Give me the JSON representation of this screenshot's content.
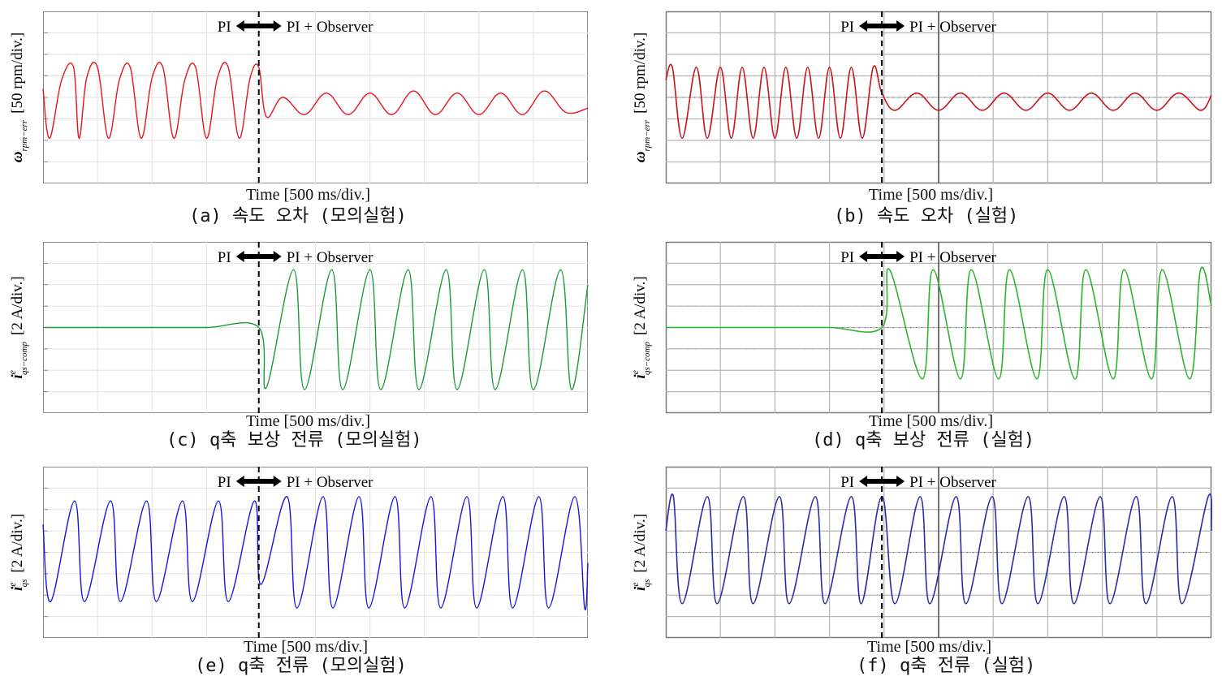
{
  "figure": {
    "panels": [
      {
        "id": "a",
        "caption": "(a) 속도 오차 (모의실험)",
        "kind": "simulation",
        "trace_color": "#e8141e",
        "ylabel_main": "[50 rpm/div.]",
        "ylabel_sym": "ω",
        "ylabel_sub": "rpm−err",
        "ylabel_sup": "",
        "xlabel": "Time [500 ms/div.]",
        "left_label": "PI",
        "right_label": "PI + Observer"
      },
      {
        "id": "b",
        "caption": "(b) 속도 오차 (실험)",
        "kind": "experiment",
        "trace_color": "#c8151b",
        "ylabel_main": "[50 rpm/div.]",
        "ylabel_sym": "ω",
        "ylabel_sub": "rpm−err",
        "ylabel_sup": "",
        "xlabel": "Time [500 ms/div.]",
        "left_label": "PI",
        "right_label": "PI + Observer"
      },
      {
        "id": "c",
        "caption": "(c) q축 보상 전류 (모의실험)",
        "kind": "simulation",
        "trace_color": "#1a9a3a",
        "ylabel_main": "[2 A/div.]",
        "ylabel_sym": "i",
        "ylabel_sub": "qs−comp",
        "ylabel_sup": "e",
        "xlabel": "Time [500 ms/div.]",
        "left_label": "PI",
        "right_label": "PI + Observer"
      },
      {
        "id": "d",
        "caption": "(d) q축 보상 전류 (실험)",
        "kind": "experiment",
        "trace_color": "#2cb52c",
        "ylabel_main": "[2 A/div.]",
        "ylabel_sym": "i",
        "ylabel_sub": "qs−comp",
        "ylabel_sup": "e",
        "xlabel": "Time [500 ms/div.]",
        "left_label": "PI",
        "right_label": "PI + Observer"
      },
      {
        "id": "e",
        "caption": "(e) q축 전류 (모의실험)",
        "kind": "simulation",
        "trace_color": "#1414e6",
        "ylabel_main": "[2 A/div.]",
        "ylabel_sym": "i",
        "ylabel_sub": "qs",
        "ylabel_sup": "e",
        "xlabel": "Time [500 ms/div.]",
        "left_label": "PI",
        "right_label": "PI + Observer"
      },
      {
        "id": "f",
        "caption": "(f) q축 전류 (실험)",
        "kind": "experiment",
        "trace_color": "#2b2ba6",
        "ylabel_main": "[2 A/div.]",
        "ylabel_sym": "i",
        "ylabel_sub": "qs",
        "ylabel_sup": "e",
        "xlabel": "Time [500 ms/div.]",
        "left_label": "PI",
        "right_label": "PI + Observer"
      }
    ]
  },
  "chart_data": [
    {
      "type": "line",
      "panel": "a",
      "title": "",
      "xlabel": "Time [500 ms/div.]",
      "ylabel": "ω_rpm−err [50 rpm/div.]",
      "xlim": [
        0,
        5000
      ],
      "x_unit": "ms",
      "y_unit": "div",
      "ylim": [
        -4,
        4
      ],
      "switch_time": 1980,
      "series": [
        {
          "x": [
            0,
            60,
            170,
            280,
            330,
            400,
            500,
            600,
            700,
            800,
            900,
            1000,
            1100,
            1200,
            1300,
            1400,
            1500,
            1600,
            1700,
            1800,
            1900,
            1980,
            2050,
            2200,
            2400,
            2600,
            2800,
            3000,
            3200,
            3400,
            3600,
            3800,
            4000,
            4200,
            4400,
            4600,
            4800,
            5000
          ],
          "values": [
            0.4,
            -1.9,
            0.8,
            1.4,
            -1.9,
            0.9,
            1.4,
            -1.9,
            0.8,
            1.4,
            -1.9,
            0.9,
            1.4,
            -1.9,
            0.8,
            1.4,
            -1.9,
            0.9,
            1.4,
            -1.9,
            0.9,
            1.4,
            -0.9,
            0.0,
            -0.8,
            0.2,
            -0.8,
            0.2,
            -0.8,
            0.3,
            -0.8,
            0.2,
            -0.8,
            0.2,
            -0.8,
            0.3,
            -0.7,
            -0.5
          ]
        }
      ],
      "grid": true
    },
    {
      "type": "line",
      "panel": "b",
      "title": "",
      "xlabel": "Time [500 ms/div.]",
      "ylabel": "ω_rpm−err [50 rpm/div.]",
      "xlim": [
        0,
        5000
      ],
      "x_unit": "ms",
      "y_unit": "div",
      "ylim": [
        -4,
        4
      ],
      "switch_time": 1980,
      "series": [
        {
          "x": [
            0,
            60,
            150,
            280,
            380,
            500,
            600,
            700,
            800,
            900,
            1000,
            1100,
            1200,
            1300,
            1400,
            1500,
            1600,
            1700,
            1800,
            1900,
            1980,
            2100,
            2300,
            2500,
            2700,
            2900,
            3100,
            3300,
            3500,
            3700,
            3900,
            4100,
            4300,
            4500,
            4700,
            4900,
            5000
          ],
          "values": [
            0.8,
            1.4,
            -1.9,
            1.4,
            -1.9,
            1.4,
            -1.9,
            1.4,
            -1.9,
            1.4,
            -1.9,
            1.4,
            -1.9,
            1.4,
            -1.9,
            1.4,
            -1.9,
            1.4,
            -1.9,
            1.4,
            0.2,
            -0.6,
            0.2,
            -0.6,
            0.2,
            -0.6,
            0.2,
            -0.6,
            0.2,
            -0.6,
            0.2,
            -0.6,
            0.2,
            -0.6,
            0.2,
            -0.6,
            0.1
          ]
        }
      ],
      "grid": true
    },
    {
      "type": "line",
      "panel": "c",
      "title": "",
      "xlabel": "Time [500 ms/div.]",
      "ylabel": "i^e_qs−comp [2 A/div.]",
      "xlim": [
        0,
        5000
      ],
      "x_unit": "ms",
      "y_unit": "div",
      "ylim": [
        -4,
        4
      ],
      "switch_time": 1980,
      "series": [
        {
          "x": [
            0,
            500,
            1000,
            1500,
            1980,
            2050,
            2300,
            2400,
            2650,
            2750,
            3000,
            3100,
            3350,
            3450,
            3700,
            3800,
            4050,
            4150,
            4400,
            4500,
            4750,
            4850,
            5000
          ],
          "values": [
            0.0,
            0.0,
            0.0,
            0.0,
            0.0,
            -2.8,
            2.7,
            -2.9,
            2.7,
            -2.9,
            2.7,
            -2.9,
            2.7,
            -2.9,
            2.7,
            -2.9,
            2.7,
            -2.9,
            2.7,
            -2.9,
            2.7,
            -2.9,
            2.0
          ]
        }
      ],
      "grid": true
    },
    {
      "type": "line",
      "panel": "d",
      "title": "",
      "xlabel": "Time [500 ms/div.]",
      "ylabel": "i^e_qs−comp [2 A/div.]",
      "xlim": [
        0,
        5000
      ],
      "x_unit": "ms",
      "y_unit": "div",
      "ylim": [
        -4,
        4
      ],
      "switch_time": 1980,
      "series": [
        {
          "x": [
            0,
            500,
            1000,
            1500,
            1980,
            2050,
            2350,
            2450,
            2700,
            2800,
            3050,
            3150,
            3400,
            3500,
            3750,
            3850,
            4100,
            4200,
            4450,
            4550,
            4800,
            4900,
            5000
          ],
          "values": [
            0.0,
            0.0,
            0.0,
            0.0,
            0.0,
            2.7,
            -2.4,
            2.7,
            -2.4,
            2.7,
            -2.4,
            2.7,
            -2.4,
            2.7,
            -2.4,
            2.7,
            -2.4,
            2.7,
            -2.4,
            2.7,
            -2.4,
            2.7,
            1.0
          ]
        }
      ],
      "grid": true
    },
    {
      "type": "line",
      "panel": "e",
      "title": "",
      "xlabel": "Time [500 ms/div.]",
      "ylabel": "i^e_qs [2 A/div.]",
      "xlim": [
        0,
        5000
      ],
      "x_unit": "ms",
      "y_unit": "div",
      "ylim": [
        -4,
        4
      ],
      "switch_time": 1980,
      "series": [
        {
          "x": [
            0,
            70,
            290,
            380,
            620,
            710,
            950,
            1040,
            1280,
            1370,
            1610,
            1700,
            1940,
            2000,
            2240,
            2330,
            2570,
            2660,
            2900,
            2990,
            3230,
            3320,
            3560,
            3650,
            3890,
            3980,
            4220,
            4310,
            4550,
            4640,
            4880,
            4970,
            5000
          ],
          "values": [
            1.3,
            -2.3,
            2.4,
            -2.3,
            2.4,
            -2.3,
            2.4,
            -2.3,
            2.4,
            -2.3,
            2.4,
            -2.3,
            2.4,
            -1.5,
            2.6,
            -2.6,
            2.6,
            -2.6,
            2.6,
            -2.6,
            2.6,
            -2.6,
            2.6,
            -2.6,
            2.6,
            -2.6,
            2.6,
            -2.6,
            2.6,
            -2.6,
            2.6,
            -2.6,
            -0.5
          ]
        }
      ],
      "grid": true
    },
    {
      "type": "line",
      "panel": "f",
      "title": "",
      "xlabel": "Time [500 ms/div.]",
      "ylabel": "i^e_qs [2 A/div.]",
      "xlim": [
        0,
        5000
      ],
      "x_unit": "ms",
      "y_unit": "div",
      "ylim": [
        -4,
        4
      ],
      "switch_time": 1980,
      "series": [
        {
          "x": [
            0,
            70,
            150,
            380,
            470,
            710,
            800,
            1040,
            1130,
            1370,
            1460,
            1700,
            1790,
            1980,
            2100,
            2330,
            2420,
            2660,
            2750,
            2990,
            3080,
            3320,
            3410,
            3650,
            3740,
            3980,
            4070,
            4310,
            4400,
            4640,
            4730,
            4970,
            5000
          ],
          "values": [
            1.0,
            2.6,
            -2.4,
            2.6,
            -2.4,
            2.6,
            -2.4,
            2.6,
            -2.4,
            2.6,
            -2.4,
            2.6,
            -2.4,
            2.6,
            -2.4,
            2.6,
            -2.4,
            2.6,
            -2.4,
            2.6,
            -2.4,
            2.6,
            -2.4,
            2.6,
            -2.4,
            2.6,
            -2.4,
            2.6,
            -2.4,
            2.6,
            -2.4,
            2.6,
            1.0
          ]
        }
      ],
      "grid": true
    }
  ]
}
